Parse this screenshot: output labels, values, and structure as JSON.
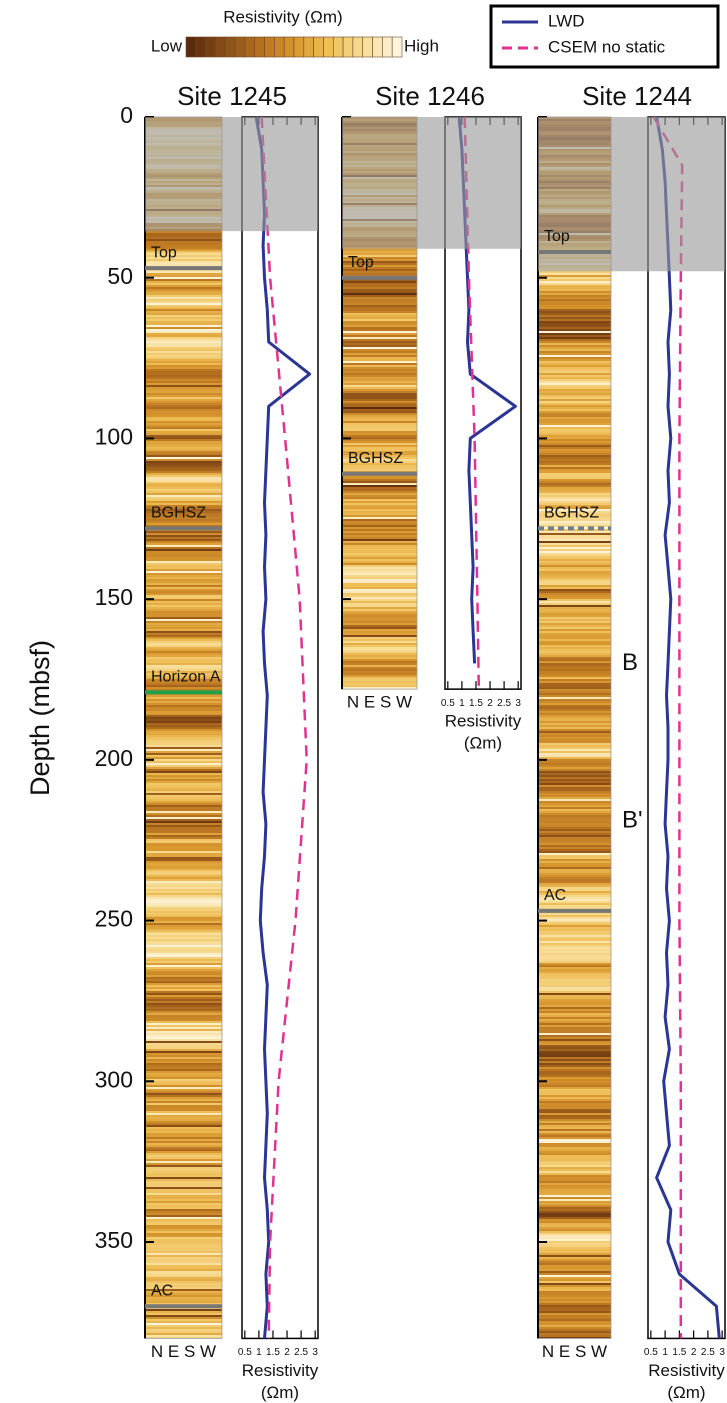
{
  "colorbar": {
    "title": "Resistivity  (Ωm)",
    "low": "Low",
    "high": "High",
    "colors": [
      "#5a2a0a",
      "#8a4e18",
      "#b5701f",
      "#d8962e",
      "#efbe57",
      "#f7dc93",
      "#fdf4dc"
    ]
  },
  "chart_data": [
    {
      "type": "line",
      "title": "Site 1245",
      "ylabel": "Depth (mbsf)",
      "ylim": [
        0,
        380
      ],
      "yticks": [
        0,
        50,
        100,
        150,
        200,
        250,
        300,
        350
      ],
      "xlim": [
        0.4,
        3.1
      ],
      "xticks": [
        0.5,
        1,
        1.5,
        2,
        2.5,
        3
      ],
      "compass": "N E S W",
      "xlabel": "Resistivity",
      "xlabel_unit": "(Ωm)",
      "shaded_depth": 35.5,
      "horizons": [
        {
          "label": "Top",
          "depth": 47,
          "color": "#777777",
          "style": "solid"
        },
        {
          "label": "BGHSZ",
          "depth": 128,
          "color": "#777777",
          "style": "solid"
        },
        {
          "label": "Horizon A",
          "depth": 179,
          "color": "#22a04a",
          "style": "solid"
        },
        {
          "label": "AC",
          "depth": 370,
          "color": "#777777",
          "style": "solid"
        }
      ],
      "series": [
        {
          "name": "LWD",
          "color": "#2b3593",
          "dash": false,
          "x": [
            0,
            10,
            20,
            30,
            40,
            50,
            60,
            70,
            80,
            90,
            100,
            110,
            120,
            130,
            140,
            150,
            160,
            170,
            180,
            190,
            200,
            210,
            220,
            230,
            240,
            250,
            260,
            270,
            280,
            290,
            300,
            310,
            320,
            330,
            340,
            350,
            360,
            370,
            380
          ],
          "values": [
            0.9,
            1.1,
            1.15,
            1.2,
            1.15,
            1.2,
            1.3,
            1.35,
            2.8,
            1.35,
            1.3,
            1.25,
            1.2,
            1.25,
            1.2,
            1.25,
            1.15,
            1.2,
            1.3,
            1.25,
            1.2,
            1.15,
            1.25,
            1.2,
            1.1,
            1.05,
            1.15,
            1.3,
            1.25,
            1.2,
            1.25,
            1.3,
            1.25,
            1.2,
            1.3,
            1.35,
            1.25,
            1.3,
            1.2
          ]
        },
        {
          "name": "CSEM no static",
          "color": "#e0338f",
          "dash": true,
          "x": [
            0,
            50,
            100,
            150,
            200,
            250,
            300,
            350,
            380
          ],
          "values": [
            1.1,
            1.4,
            1.93,
            2.45,
            2.7,
            2.3,
            1.7,
            1.4,
            1.35
          ]
        }
      ]
    },
    {
      "type": "line",
      "title": "Site 1246",
      "ylim": [
        0,
        178
      ],
      "yticks": [
        0,
        50,
        100,
        150
      ],
      "xlim": [
        0.4,
        3.1
      ],
      "xticks": [
        0.5,
        1,
        1.5,
        2,
        2.5,
        3
      ],
      "compass": "N E S W",
      "xlabel": "Resistivity",
      "xlabel_unit": "(Ωm)",
      "shaded_depth": 41,
      "horizons": [
        {
          "label": "Top",
          "depth": 50,
          "color": "#777777",
          "style": "solid"
        },
        {
          "label": "BGHSZ",
          "depth": 111,
          "color": "#777777",
          "style": "solid"
        }
      ],
      "series": [
        {
          "color": "#2b3593",
          "dash": false,
          "x": [
            0,
            10,
            20,
            30,
            40,
            50,
            60,
            70,
            80,
            90,
            100,
            110,
            120,
            130,
            140,
            150,
            160,
            170
          ],
          "values": [
            0.9,
            1.0,
            1.05,
            1.1,
            1.15,
            1.2,
            1.25,
            1.2,
            1.3,
            2.9,
            1.3,
            1.25,
            1.3,
            1.35,
            1.4,
            1.35,
            1.4,
            1.45
          ]
        },
        {
          "color": "#e0338f",
          "dash": true,
          "x": [
            0,
            50,
            100,
            150,
            178
          ],
          "values": [
            1.1,
            1.25,
            1.45,
            1.55,
            1.6
          ]
        }
      ]
    },
    {
      "type": "line",
      "title": "Site 1244",
      "ylim": [
        0,
        380
      ],
      "yticks": [
        0,
        50,
        100,
        150,
        200,
        250,
        300,
        350
      ],
      "xlim": [
        0.4,
        3.1
      ],
      "xticks": [
        0.5,
        1,
        1.5,
        2,
        2.5,
        3
      ],
      "compass": "N E S W",
      "xlabel": "Resistivity",
      "xlabel_unit": "(Ωm)",
      "shaded_depth": 48,
      "horizons": [
        {
          "label": "Top",
          "depth": 42,
          "color": "#777777",
          "style": "solid"
        },
        {
          "label": "BGHSZ",
          "depth": 128,
          "color": "#6f7f8f",
          "style": "dashed"
        },
        {
          "label": "AC",
          "depth": 247,
          "color": "#777777",
          "style": "solid"
        }
      ],
      "annotations": [
        {
          "text": "B",
          "depth": 170
        },
        {
          "text": "B'",
          "depth": 219
        }
      ],
      "series": [
        {
          "color": "#2b3593",
          "dash": false,
          "x": [
            0,
            10,
            20,
            30,
            40,
            50,
            60,
            70,
            80,
            90,
            100,
            110,
            120,
            130,
            140,
            150,
            160,
            170,
            180,
            190,
            200,
            210,
            220,
            230,
            240,
            250,
            260,
            270,
            280,
            290,
            300,
            310,
            320,
            330,
            340,
            350,
            360,
            370,
            380
          ],
          "values": [
            0.7,
            0.9,
            1.0,
            1.05,
            1.1,
            1.15,
            1.2,
            1.1,
            1.15,
            1.1,
            1.2,
            1.1,
            1.15,
            1.0,
            1.1,
            1.2,
            1.15,
            1.1,
            1.05,
            1.1,
            1.1,
            1.05,
            1.0,
            1.1,
            1.05,
            1.15,
            1.05,
            1.1,
            1.0,
            1.15,
            0.95,
            1.05,
            1.15,
            0.7,
            1.2,
            1.1,
            1.5,
            2.8,
            2.9
          ]
        },
        {
          "color": "#e0338f",
          "dash": true,
          "x": [
            0,
            15,
            50,
            100,
            150,
            200,
            250,
            300,
            380
          ],
          "values": [
            0.6,
            1.6,
            1.55,
            1.5,
            1.5,
            1.5,
            1.5,
            1.55,
            1.55
          ]
        }
      ]
    }
  ]
}
